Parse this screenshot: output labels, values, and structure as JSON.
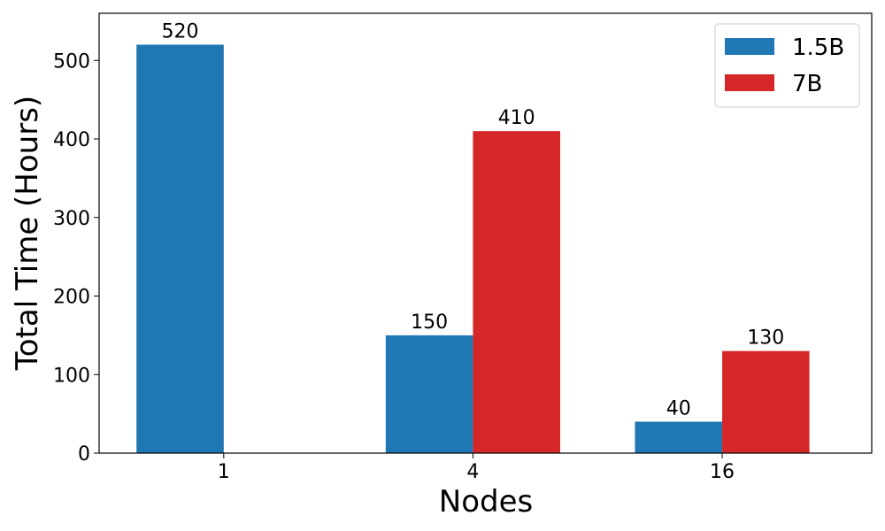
{
  "chart_data": {
    "type": "bar",
    "title": "",
    "xlabel": "Nodes",
    "ylabel": "Total Time (Hours)",
    "categories": [
      "1",
      "4",
      "16"
    ],
    "ylim": [
      0,
      560
    ],
    "yticks": [
      0,
      100,
      200,
      300,
      400,
      500
    ],
    "grid": false,
    "legend_position": "top-right",
    "series": [
      {
        "name": "1.5B",
        "color": "#1f77b4",
        "values": [
          520,
          150,
          40
        ]
      },
      {
        "name": "7B",
        "color": "#d62728",
        "values": [
          null,
          410,
          130
        ]
      }
    ]
  }
}
